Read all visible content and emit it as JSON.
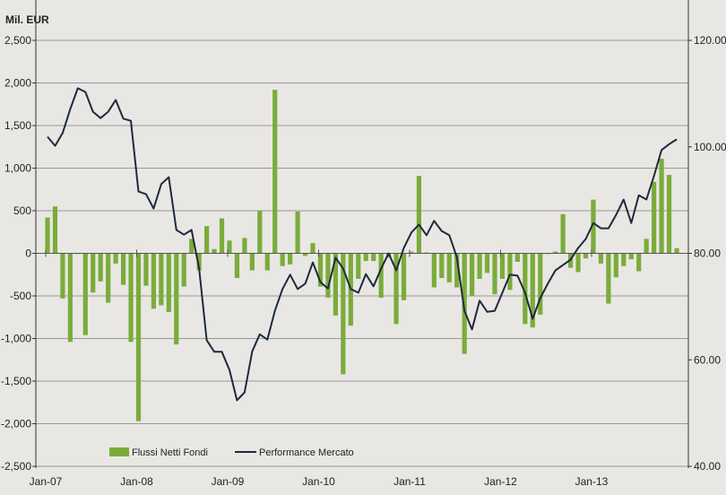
{
  "chart_data": {
    "type": "bar+line",
    "title": "Mil. EUR",
    "xlabel": "",
    "ylabel": "Mil. EUR",
    "x_tick_labels": [
      "Jan-07",
      "Jan-08",
      "Jan-09",
      "Jan-10",
      "Jan-11",
      "Jan-12",
      "Jan-13"
    ],
    "y_left": {
      "lim": [
        -2500,
        2500
      ],
      "ticks": [
        "2,500",
        "2,000",
        "1,500",
        "1,000",
        "500",
        "0",
        "-500",
        "-1,000",
        "-1,500",
        "-2,000",
        "-2,500"
      ]
    },
    "y_right": {
      "lim": [
        40,
        120
      ],
      "ticks": [
        "120.00",
        "100.00",
        "80.00",
        "60.00",
        "40.00"
      ]
    },
    "grid": true,
    "legend_position": "bottom-left",
    "categories_start": "Jan-07",
    "categories_end": "Dec-13",
    "series": [
      {
        "name": "Flussi Netti Fondi",
        "type": "bar",
        "axis": "left",
        "color": "#7aac3a",
        "values": [
          420,
          550,
          -530,
          -1040,
          0,
          -960,
          -460,
          -330,
          -580,
          -120,
          -370,
          -1040,
          -1970,
          -380,
          -650,
          -610,
          -690,
          -1070,
          -390,
          170,
          -200,
          320,
          50,
          410,
          150,
          -290,
          180,
          -200,
          500,
          -200,
          1920,
          -150,
          -130,
          490,
          -30,
          120,
          -390,
          -520,
          -730,
          -1420,
          -850,
          -300,
          -90,
          -90,
          -520,
          -50,
          -830,
          -550,
          20,
          910,
          10,
          -400,
          -290,
          -340,
          -400,
          -1180,
          -500,
          -300,
          -230,
          -480,
          -300,
          -430,
          -100,
          -830,
          -870,
          -720,
          0,
          20,
          460,
          -170,
          -220,
          -60,
          630,
          -120,
          -590,
          -280,
          -150,
          -70,
          -210,
          170,
          840,
          1110,
          920,
          60
        ]
      },
      {
        "name": "Performance Mercato",
        "type": "line",
        "axis": "right",
        "color": "#1d2a3d",
        "values": [
          101.9,
          100.2,
          102.6,
          107.1,
          111,
          110.3,
          106.6,
          105.4,
          106.6,
          108.8,
          105.3,
          104.9,
          91.6,
          91.1,
          88.4,
          93,
          94.3,
          84.4,
          83.5,
          84.4,
          77.1,
          63.7,
          61.5,
          61.5,
          58.1,
          52.4,
          53.9,
          61.6,
          64.8,
          63.8,
          69.2,
          73.3,
          76,
          73.3,
          74.3,
          78.3,
          74.6,
          73.4,
          79.2,
          77.1,
          73.3,
          72.6,
          76.1,
          73.8,
          77.1,
          80,
          76.8,
          81,
          83.9,
          85.4,
          83.4,
          86.1,
          84.2,
          83.4,
          79.3,
          69.2,
          65.7,
          71.1,
          69,
          69.2,
          72.6,
          76,
          75.8,
          72.6,
          67.7,
          71.6,
          74.3,
          76.8,
          77.8,
          78.8,
          81,
          82.7,
          85.7,
          84.7,
          84.7,
          87.2,
          90.1,
          85.7,
          90.9,
          90.1,
          94.5,
          99.4,
          100.5,
          101.4
        ]
      }
    ]
  }
}
